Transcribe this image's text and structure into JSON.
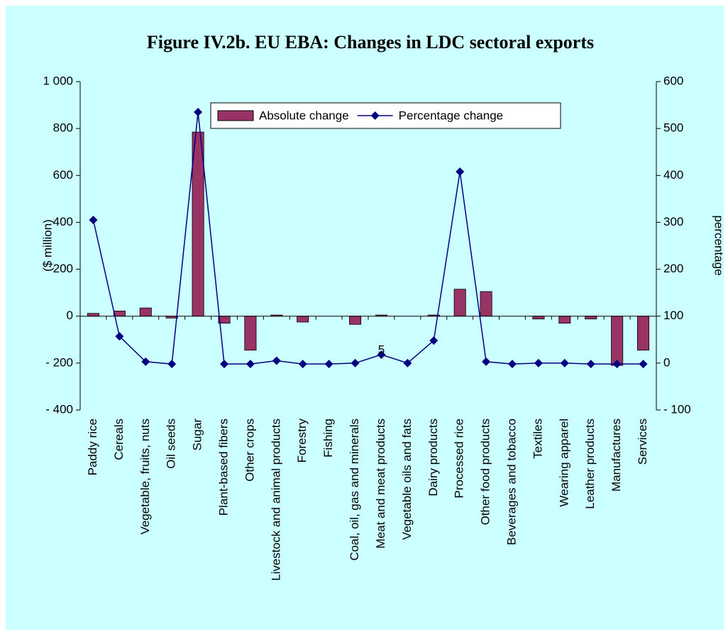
{
  "chart_data": {
    "type": "combo",
    "title": "Figure IV.2b.  EU EBA: Changes in LDC sectoral exports",
    "ylabel": "($ million)",
    "y2label": "percentage",
    "categories": [
      "Paddy rice",
      "Cereals",
      "Vegetable, fruits, nuts",
      "Oil seeds",
      "Sugar",
      "Plant-based fibers",
      "Other crops",
      "Livestock and animal products",
      "Forestry",
      "Fishing",
      "Coal, oil, gas and minerals",
      "Meat and meat products",
      "Vegetable oils and fats",
      "Dairy products",
      "Processed rice",
      "Other food products",
      "Beverages and tobacco",
      "Textiles",
      "Wearing apparel",
      "Leather products",
      "Manufactures",
      "Services"
    ],
    "series": [
      {
        "name": "Absolute change",
        "type": "bar",
        "color": "#993366",
        "values": [
          12,
          22,
          35,
          -8,
          785,
          -30,
          -145,
          5,
          -25,
          0,
          -35,
          5,
          0,
          5,
          115,
          105,
          0,
          -12,
          -30,
          -12,
          -210,
          -145
        ]
      },
      {
        "name": "Percentage change",
        "type": "line",
        "axis": "y2",
        "color": "#000080",
        "values": [
          305,
          57,
          3,
          -2,
          535,
          -2,
          -2,
          5,
          -2,
          -2,
          0,
          18,
          0,
          48,
          408,
          3,
          -2,
          0,
          0,
          -2,
          -2,
          -2
        ]
      }
    ],
    "annotation": "5",
    "ylim": [
      -400,
      1000
    ],
    "yticks": [
      {
        "value": -400,
        "label": "- 400"
      },
      {
        "value": -200,
        "label": "- 200"
      },
      0,
      200,
      400,
      600,
      800,
      {
        "value": 1000,
        "label": "1 000"
      }
    ],
    "y2lim": [
      -100,
      600
    ],
    "y2ticks": [
      {
        "value": -100,
        "label": "- 100"
      },
      0,
      100,
      200,
      300,
      400,
      500,
      600
    ],
    "legend": "top"
  }
}
